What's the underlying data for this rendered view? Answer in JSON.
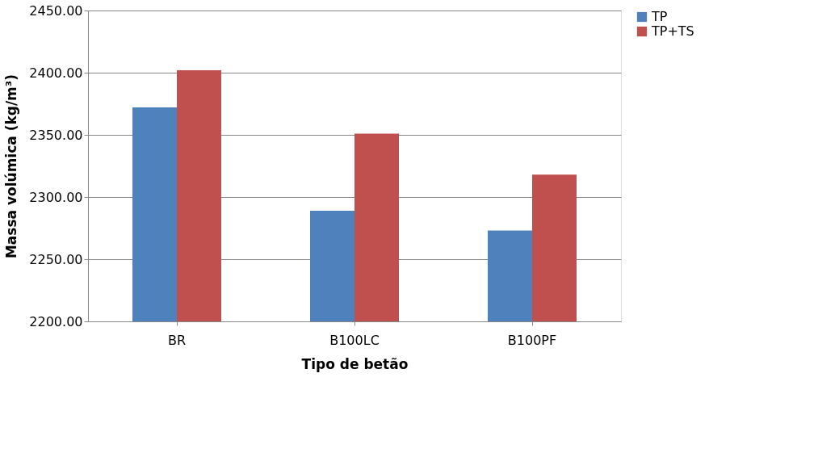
{
  "chart_data": {
    "type": "bar",
    "xlabel": "Tipo de betão",
    "ylabel": "Massa volúmica (kg/m³)",
    "categories": [
      "BR",
      "B100LC",
      "B100PF"
    ],
    "series": [
      {
        "name": "TP",
        "color": "#4f81bd",
        "values": [
          2372,
          2289,
          2273
        ]
      },
      {
        "name": "TP+TS",
        "color": "#c0504d",
        "values": [
          2402,
          2351,
          2318
        ]
      }
    ],
    "ylim": [
      2200,
      2450
    ],
    "yticks": [
      {
        "value": 2200,
        "label": "2200.00"
      },
      {
        "value": 2250,
        "label": "2250.00"
      },
      {
        "value": 2300,
        "label": "2300.00"
      },
      {
        "value": 2350,
        "label": "2350.00"
      },
      {
        "value": 2400,
        "label": "2400.00"
      },
      {
        "value": 2450,
        "label": "2450.00"
      }
    ],
    "grid": "y",
    "legend": "right"
  }
}
